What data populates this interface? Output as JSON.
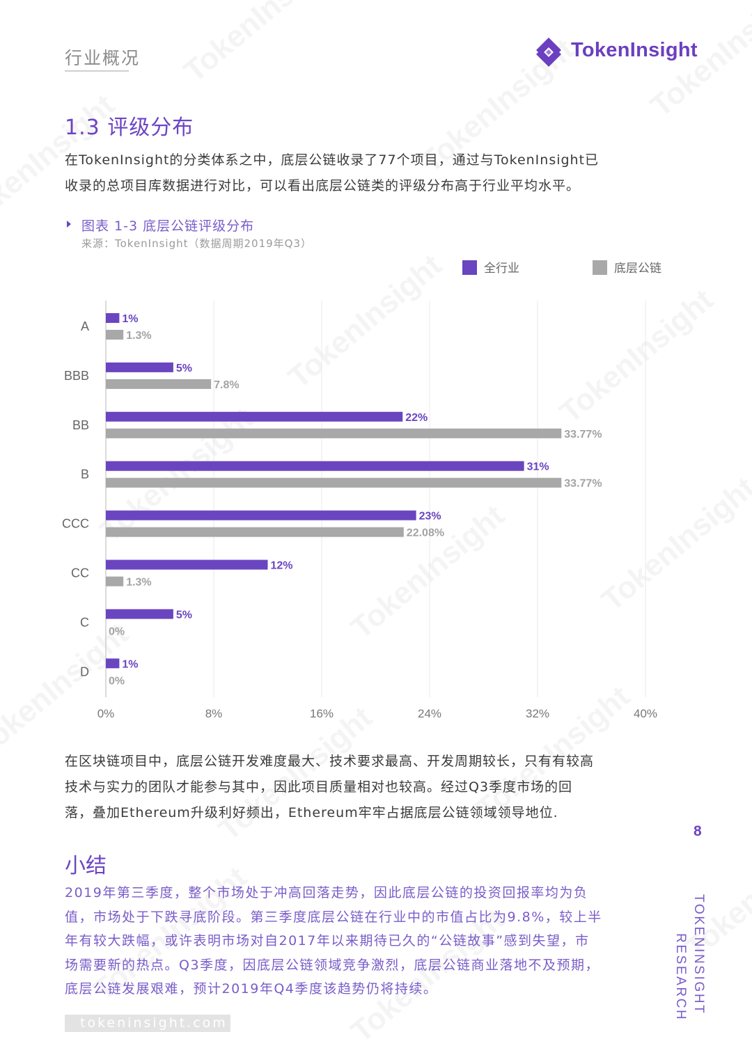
{
  "header": {
    "section_label": "行业概况",
    "brand": "TokenInsight"
  },
  "section": {
    "heading": "1.3 评级分布",
    "intro_line1": "在TokenInsight的分类体系之中，底层公链收录了77个项目，通过与TokenInsight已",
    "intro_line2": "收录的总项目库数据进行对比，可以看出底层公链类的评级分布高于行业平均水平。"
  },
  "figure": {
    "title": "图表 1-3 底层公链评级分布",
    "source": "来源：TokenInsight（数据周期2019年Q3）"
  },
  "chart_data": {
    "type": "bar",
    "orientation": "horizontal",
    "categories": [
      "A",
      "BBB",
      "BB",
      "B",
      "CCC",
      "CC",
      "C",
      "D"
    ],
    "series": [
      {
        "name": "全行业",
        "color": "#6a45c0",
        "values": [
          1,
          5,
          22,
          31,
          23,
          12,
          5,
          1
        ],
        "labels": [
          "1%",
          "5%",
          "22%",
          "31%",
          "23%",
          "12%",
          "5%",
          "1%"
        ]
      },
      {
        "name": "底层公链",
        "color": "#a8a8a8",
        "values": [
          1.3,
          7.8,
          33.77,
          33.77,
          22.08,
          1.3,
          0,
          0
        ],
        "labels": [
          "1.3%",
          "7.8%",
          "33.77%",
          "33.77%",
          "22.08%",
          "1.3%",
          "0%",
          "0%"
        ]
      }
    ],
    "xlim": [
      0,
      40
    ],
    "xticks": [
      0,
      8,
      16,
      24,
      32,
      40
    ],
    "xtick_labels": [
      "0%",
      "8%",
      "16%",
      "24%",
      "32%",
      "40%"
    ],
    "grid": true,
    "legend_position": "top-right"
  },
  "analysis": {
    "line1": "在区块链项目中，底层公链开发难度最大、技术要求最高、开发周期较长，只有有较高",
    "line2": "技术与实力的团队才能参与其中，因此项目质量相对也较高。经过Q3季度市场的回",
    "line3": "落，叠加Ethereum升级利好频出，Ethereum牢牢占据底层公链领域领导地位."
  },
  "page_number": "8",
  "summary": {
    "heading": "小结",
    "line1": "2019年第三季度，整个市场处于冲高回落走势，因此底层公链的投资回报率均为负",
    "line2": "值，市场处于下跌寻底阶段。第三季度底层公链在行业中的市值占比为9.8%，较上半",
    "line3": "年有较大跌幅，或许表明市场对自2017年以来期待已久的“公链故事”感到失望，市",
    "line4": "场需要新的热点。Q3季度，因底层公链领域竞争激烈，底层公链商业落地不及预期，",
    "line5": "底层公链发展艰难，预计2019年Q4季度该趋势仍将持续。"
  },
  "side_brand": {
    "line1": "TOKENINSIGHT",
    "line2": "RESEARCH"
  },
  "footer": {
    "url": "tokeninsight.com"
  },
  "watermark": {
    "text": "TokenInsight"
  }
}
